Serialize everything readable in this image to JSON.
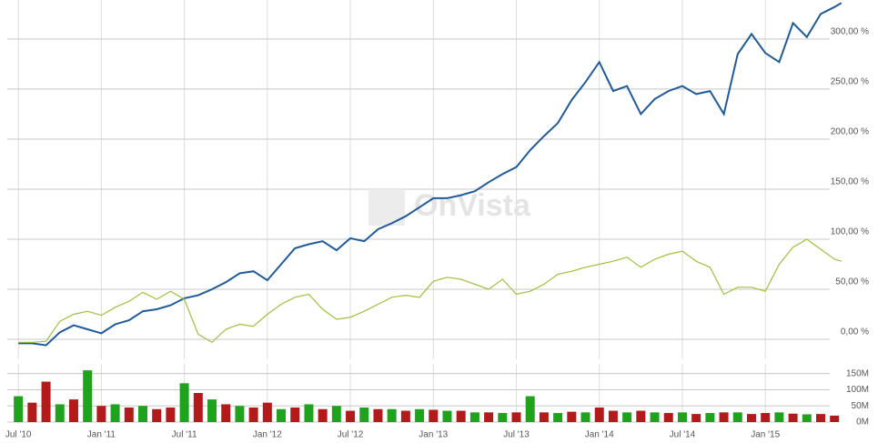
{
  "chart_data": [
    {
      "type": "line",
      "watermark": "OnVista",
      "x": [
        0,
        1,
        2,
        3,
        4,
        5,
        6,
        7,
        8,
        9,
        10,
        11,
        12,
        13,
        14,
        15,
        16,
        17,
        18,
        19,
        20,
        21,
        22,
        23,
        24,
        25,
        26,
        27,
        28,
        29,
        30,
        31,
        32,
        33,
        34,
        35,
        36,
        37,
        38,
        39,
        40,
        41,
        42,
        43,
        44,
        45,
        46,
        47,
        48,
        49,
        50,
        51,
        52,
        53,
        54,
        55,
        56,
        57,
        58,
        59,
        59.5
      ],
      "xlim": [
        -0.8,
        60.5
      ],
      "xticks": [
        {
          "value": 0,
          "label": "Jul '10"
        },
        {
          "value": 6,
          "label": "Jan '11"
        },
        {
          "value": 12,
          "label": "Jul '11"
        },
        {
          "value": 18,
          "label": "Jan '12"
        },
        {
          "value": 24,
          "label": "Jul '12"
        },
        {
          "value": 30,
          "label": "Jan '13"
        },
        {
          "value": 36,
          "label": "Jul '13"
        },
        {
          "value": 42,
          "label": "Jan '14"
        },
        {
          "value": 48,
          "label": "Jul '14"
        },
        {
          "value": 54,
          "label": "Jan '15"
        }
      ],
      "ylim": [
        -20,
        339
      ],
      "yticks": [
        {
          "value": 0,
          "label": "0,00 %"
        },
        {
          "value": 50,
          "label": "50,00 %"
        },
        {
          "value": 100,
          "label": "100,00 %"
        },
        {
          "value": 150,
          "label": "150,00 %"
        },
        {
          "value": 200,
          "label": "200,00 %"
        },
        {
          "value": 250,
          "label": "250,00 %"
        },
        {
          "value": 300,
          "label": "300,00 %"
        }
      ],
      "grid": true,
      "series": [
        {
          "color": "#1f5a99",
          "values": [
            -4,
            -4,
            -6,
            7,
            14,
            10,
            6,
            15,
            19,
            28,
            30,
            34,
            41,
            44,
            50,
            57,
            66,
            68,
            59,
            75,
            91,
            95,
            98,
            89,
            101,
            98,
            110,
            116,
            123,
            132,
            141,
            141,
            144,
            148,
            157,
            165,
            172,
            189,
            203,
            216,
            239,
            257,
            277,
            248,
            253,
            225,
            240,
            248,
            253,
            245,
            248,
            225,
            285,
            305,
            286,
            277,
            316,
            302,
            325,
            332,
            336
          ]
        },
        {
          "color": "#9dc13e",
          "values": [
            -3,
            -3,
            -2,
            18,
            25,
            28,
            24,
            32,
            38,
            47,
            40,
            48,
            40,
            5,
            -3,
            10,
            15,
            13,
            25,
            35,
            42,
            45,
            30,
            20,
            22,
            28,
            35,
            42,
            44,
            42,
            58,
            62,
            60,
            55,
            50,
            60,
            45,
            48,
            55,
            65,
            68,
            72,
            75,
            78,
            82,
            72,
            80,
            85,
            88,
            78,
            72,
            45,
            52,
            52,
            48,
            75,
            92,
            100,
            90,
            80,
            78
          ]
        }
      ]
    },
    {
      "type": "bar",
      "x": [
        0,
        1,
        2,
        3,
        4,
        5,
        6,
        7,
        8,
        9,
        10,
        11,
        12,
        13,
        14,
        15,
        16,
        17,
        18,
        19,
        20,
        21,
        22,
        23,
        24,
        25,
        26,
        27,
        28,
        29,
        30,
        31,
        32,
        33,
        34,
        35,
        36,
        37,
        38,
        39,
        40,
        41,
        42,
        43,
        44,
        45,
        46,
        47,
        48,
        49,
        50,
        51,
        52,
        53,
        54,
        55,
        56,
        57,
        58,
        59
      ],
      "values": [
        80,
        60,
        125,
        55,
        70,
        160,
        50,
        55,
        45,
        50,
        40,
        45,
        120,
        90,
        70,
        55,
        50,
        45,
        60,
        40,
        45,
        55,
        40,
        50,
        35,
        45,
        40,
        40,
        35,
        40,
        38,
        35,
        35,
        30,
        30,
        28,
        30,
        80,
        30,
        28,
        32,
        30,
        45,
        35,
        30,
        35,
        30,
        28,
        30,
        25,
        28,
        30,
        30,
        25,
        28,
        30,
        26,
        24,
        25,
        20
      ],
      "colors": [
        "#1fa31f",
        "#b31b1b",
        "#b31b1b",
        "#1fa31f",
        "#b31b1b",
        "#1fa31f",
        "#b31b1b",
        "#1fa31f",
        "#b31b1b",
        "#1fa31f",
        "#b31b1b",
        "#b31b1b",
        "#1fa31f",
        "#b31b1b",
        "#1fa31f",
        "#b31b1b",
        "#1fa31f",
        "#b31b1b",
        "#b31b1b",
        "#1fa31f",
        "#b31b1b",
        "#1fa31f",
        "#b31b1b",
        "#1fa31f",
        "#b31b1b",
        "#1fa31f",
        "#b31b1b",
        "#1fa31f",
        "#b31b1b",
        "#1fa31f",
        "#b31b1b",
        "#1fa31f",
        "#b31b1b",
        "#1fa31f",
        "#b31b1b",
        "#1fa31f",
        "#b31b1b",
        "#1fa31f",
        "#b31b1b",
        "#1fa31f",
        "#b31b1b",
        "#1fa31f",
        "#b31b1b",
        "#b31b1b",
        "#1fa31f",
        "#b31b1b",
        "#1fa31f",
        "#b31b1b",
        "#1fa31f",
        "#b31b1b",
        "#1fa31f",
        "#b31b1b",
        "#1fa31f",
        "#b31b1b",
        "#b31b1b",
        "#1fa31f",
        "#b31b1b",
        "#1fa31f",
        "#b31b1b",
        "#b31b1b"
      ],
      "ylim": [
        0,
        180
      ],
      "yticks": [
        {
          "value": 0,
          "label": "0M"
        },
        {
          "value": 50,
          "label": "50M"
        },
        {
          "value": 100,
          "label": "100M"
        },
        {
          "value": 150,
          "label": "150M"
        }
      ]
    }
  ]
}
